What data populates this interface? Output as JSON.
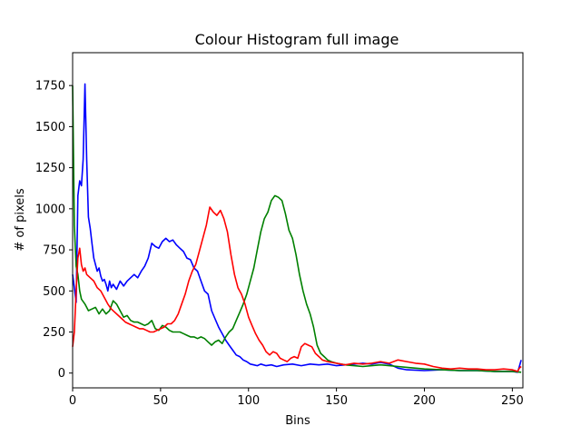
{
  "chart_data": {
    "type": "line",
    "title": "Colour Histogram full image",
    "xlabel": "Bins",
    "ylabel": "# of pixels",
    "xlim": [
      0,
      256
    ],
    "ylim": [
      -90,
      1950
    ],
    "grid": false,
    "x_ticks": [
      0,
      50,
      100,
      150,
      200,
      250
    ],
    "y_ticks": [
      0,
      250,
      500,
      750,
      1000,
      1250,
      1500,
      1750
    ],
    "series": [
      {
        "color": "#0000ff",
        "points": [
          [
            0,
            600
          ],
          [
            1,
            520
          ],
          [
            2,
            430
          ],
          [
            3,
            1080
          ],
          [
            4,
            1170
          ],
          [
            5,
            1140
          ],
          [
            6,
            1300
          ],
          [
            7,
            1760
          ],
          [
            8,
            1300
          ],
          [
            9,
            950
          ],
          [
            10,
            880
          ],
          [
            11,
            790
          ],
          [
            12,
            700
          ],
          [
            13,
            660
          ],
          [
            14,
            620
          ],
          [
            15,
            640
          ],
          [
            16,
            590
          ],
          [
            17,
            560
          ],
          [
            18,
            570
          ],
          [
            19,
            540
          ],
          [
            20,
            500
          ],
          [
            21,
            560
          ],
          [
            22,
            520
          ],
          [
            23,
            540
          ],
          [
            25,
            510
          ],
          [
            27,
            560
          ],
          [
            29,
            530
          ],
          [
            31,
            560
          ],
          [
            33,
            580
          ],
          [
            35,
            600
          ],
          [
            37,
            580
          ],
          [
            39,
            620
          ],
          [
            41,
            650
          ],
          [
            43,
            700
          ],
          [
            45,
            790
          ],
          [
            47,
            770
          ],
          [
            49,
            760
          ],
          [
            51,
            800
          ],
          [
            53,
            820
          ],
          [
            55,
            800
          ],
          [
            57,
            810
          ],
          [
            59,
            780
          ],
          [
            61,
            760
          ],
          [
            63,
            740
          ],
          [
            65,
            700
          ],
          [
            67,
            690
          ],
          [
            69,
            640
          ],
          [
            71,
            620
          ],
          [
            73,
            560
          ],
          [
            75,
            500
          ],
          [
            77,
            480
          ],
          [
            79,
            380
          ],
          [
            81,
            330
          ],
          [
            83,
            280
          ],
          [
            85,
            240
          ],
          [
            87,
            200
          ],
          [
            89,
            170
          ],
          [
            91,
            140
          ],
          [
            93,
            110
          ],
          [
            95,
            100
          ],
          [
            97,
            80
          ],
          [
            99,
            70
          ],
          [
            101,
            55
          ],
          [
            103,
            50
          ],
          [
            105,
            45
          ],
          [
            107,
            55
          ],
          [
            110,
            45
          ],
          [
            113,
            50
          ],
          [
            116,
            40
          ],
          [
            120,
            50
          ],
          [
            125,
            55
          ],
          [
            130,
            45
          ],
          [
            135,
            55
          ],
          [
            140,
            50
          ],
          [
            145,
            55
          ],
          [
            150,
            45
          ],
          [
            155,
            50
          ],
          [
            160,
            55
          ],
          [
            165,
            60
          ],
          [
            170,
            55
          ],
          [
            175,
            65
          ],
          [
            180,
            55
          ],
          [
            185,
            30
          ],
          [
            190,
            20
          ],
          [
            200,
            15
          ],
          [
            210,
            20
          ],
          [
            220,
            15
          ],
          [
            230,
            15
          ],
          [
            240,
            10
          ],
          [
            250,
            10
          ],
          [
            253,
            5
          ],
          [
            254,
            40
          ],
          [
            255,
            80
          ]
        ]
      },
      {
        "color": "#008000",
        "points": [
          [
            0,
            1750
          ],
          [
            1,
            900
          ],
          [
            2,
            650
          ],
          [
            3,
            600
          ],
          [
            4,
            500
          ],
          [
            5,
            450
          ],
          [
            7,
            420
          ],
          [
            9,
            380
          ],
          [
            11,
            390
          ],
          [
            13,
            400
          ],
          [
            15,
            360
          ],
          [
            17,
            390
          ],
          [
            19,
            360
          ],
          [
            21,
            380
          ],
          [
            23,
            440
          ],
          [
            25,
            420
          ],
          [
            27,
            380
          ],
          [
            29,
            340
          ],
          [
            31,
            350
          ],
          [
            33,
            320
          ],
          [
            35,
            310
          ],
          [
            37,
            310
          ],
          [
            39,
            300
          ],
          [
            41,
            290
          ],
          [
            43,
            300
          ],
          [
            45,
            320
          ],
          [
            47,
            270
          ],
          [
            49,
            260
          ],
          [
            51,
            290
          ],
          [
            53,
            280
          ],
          [
            55,
            260
          ],
          [
            57,
            250
          ],
          [
            59,
            250
          ],
          [
            61,
            250
          ],
          [
            63,
            240
          ],
          [
            65,
            230
          ],
          [
            67,
            220
          ],
          [
            69,
            220
          ],
          [
            71,
            210
          ],
          [
            73,
            220
          ],
          [
            75,
            210
          ],
          [
            77,
            190
          ],
          [
            79,
            170
          ],
          [
            81,
            190
          ],
          [
            83,
            200
          ],
          [
            85,
            180
          ],
          [
            87,
            220
          ],
          [
            89,
            250
          ],
          [
            91,
            270
          ],
          [
            93,
            320
          ],
          [
            95,
            370
          ],
          [
            97,
            420
          ],
          [
            99,
            480
          ],
          [
            101,
            560
          ],
          [
            103,
            640
          ],
          [
            105,
            750
          ],
          [
            107,
            860
          ],
          [
            109,
            940
          ],
          [
            111,
            980
          ],
          [
            113,
            1050
          ],
          [
            115,
            1080
          ],
          [
            117,
            1070
          ],
          [
            119,
            1050
          ],
          [
            121,
            970
          ],
          [
            123,
            870
          ],
          [
            125,
            820
          ],
          [
            127,
            720
          ],
          [
            129,
            600
          ],
          [
            131,
            500
          ],
          [
            133,
            420
          ],
          [
            135,
            360
          ],
          [
            137,
            280
          ],
          [
            139,
            170
          ],
          [
            141,
            120
          ],
          [
            143,
            100
          ],
          [
            145,
            80
          ],
          [
            147,
            70
          ],
          [
            150,
            60
          ],
          [
            155,
            50
          ],
          [
            160,
            45
          ],
          [
            165,
            40
          ],
          [
            170,
            45
          ],
          [
            175,
            50
          ],
          [
            180,
            45
          ],
          [
            185,
            40
          ],
          [
            190,
            35
          ],
          [
            195,
            30
          ],
          [
            200,
            25
          ],
          [
            210,
            20
          ],
          [
            220,
            15
          ],
          [
            230,
            15
          ],
          [
            240,
            10
          ],
          [
            250,
            10
          ],
          [
            255,
            5
          ]
        ]
      },
      {
        "color": "#ff0000",
        "points": [
          [
            0,
            160
          ],
          [
            1,
            250
          ],
          [
            2,
            500
          ],
          [
            3,
            700
          ],
          [
            4,
            760
          ],
          [
            5,
            660
          ],
          [
            6,
            620
          ],
          [
            7,
            640
          ],
          [
            8,
            600
          ],
          [
            10,
            580
          ],
          [
            12,
            560
          ],
          [
            14,
            520
          ],
          [
            16,
            500
          ],
          [
            18,
            460
          ],
          [
            20,
            420
          ],
          [
            22,
            390
          ],
          [
            24,
            370
          ],
          [
            26,
            350
          ],
          [
            28,
            330
          ],
          [
            30,
            310
          ],
          [
            32,
            300
          ],
          [
            34,
            290
          ],
          [
            36,
            280
          ],
          [
            38,
            270
          ],
          [
            40,
            270
          ],
          [
            42,
            260
          ],
          [
            44,
            250
          ],
          [
            46,
            250
          ],
          [
            48,
            260
          ],
          [
            50,
            270
          ],
          [
            52,
            280
          ],
          [
            54,
            300
          ],
          [
            56,
            300
          ],
          [
            58,
            320
          ],
          [
            60,
            360
          ],
          [
            62,
            420
          ],
          [
            64,
            480
          ],
          [
            66,
            560
          ],
          [
            68,
            620
          ],
          [
            70,
            660
          ],
          [
            72,
            740
          ],
          [
            74,
            820
          ],
          [
            76,
            900
          ],
          [
            78,
            1010
          ],
          [
            80,
            980
          ],
          [
            82,
            960
          ],
          [
            84,
            990
          ],
          [
            86,
            940
          ],
          [
            88,
            860
          ],
          [
            90,
            720
          ],
          [
            92,
            600
          ],
          [
            94,
            520
          ],
          [
            96,
            480
          ],
          [
            98,
            420
          ],
          [
            100,
            340
          ],
          [
            102,
            290
          ],
          [
            104,
            240
          ],
          [
            106,
            200
          ],
          [
            108,
            170
          ],
          [
            110,
            130
          ],
          [
            112,
            110
          ],
          [
            114,
            130
          ],
          [
            116,
            120
          ],
          [
            118,
            90
          ],
          [
            120,
            80
          ],
          [
            122,
            70
          ],
          [
            124,
            90
          ],
          [
            126,
            100
          ],
          [
            128,
            90
          ],
          [
            130,
            160
          ],
          [
            132,
            180
          ],
          [
            134,
            170
          ],
          [
            136,
            160
          ],
          [
            138,
            120
          ],
          [
            140,
            100
          ],
          [
            142,
            80
          ],
          [
            145,
            70
          ],
          [
            150,
            60
          ],
          [
            155,
            50
          ],
          [
            160,
            60
          ],
          [
            165,
            55
          ],
          [
            170,
            60
          ],
          [
            175,
            70
          ],
          [
            180,
            60
          ],
          [
            185,
            80
          ],
          [
            190,
            70
          ],
          [
            195,
            60
          ],
          [
            200,
            55
          ],
          [
            205,
            40
          ],
          [
            210,
            30
          ],
          [
            215,
            25
          ],
          [
            220,
            30
          ],
          [
            225,
            25
          ],
          [
            230,
            25
          ],
          [
            235,
            20
          ],
          [
            240,
            20
          ],
          [
            245,
            25
          ],
          [
            250,
            20
          ],
          [
            253,
            10
          ],
          [
            254,
            30
          ],
          [
            255,
            40
          ]
        ]
      }
    ]
  }
}
